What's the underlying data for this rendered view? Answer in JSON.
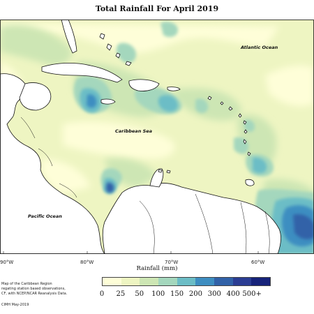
{
  "title": "Total Rainfall For April 2019",
  "labels": {
    "atlantic": "Atlantic Ocean",
    "caribbean": "Caribbean Sea",
    "pacific": "Pacific Ocean"
  },
  "longitudes": [
    "90°W",
    "80°W",
    "70°W",
    "60°W"
  ],
  "axis_title": "Rainfall (mm)",
  "legend": {
    "colors": [
      "#fefed8",
      "#eef5c2",
      "#cde6b4",
      "#a4d7bd",
      "#6cbdc6",
      "#3e8ec1",
      "#3262a8",
      "#2b3d93",
      "#17237a"
    ],
    "ticks": [
      "0",
      "25",
      "50",
      "100",
      "150",
      "200",
      "300",
      "400",
      "500+"
    ]
  },
  "notes": [
    "Map of the Caribbean Region",
    "regating station based observations,",
    "CF, with NCEP/NCAR Reanalysis Data.",
    "CIMH May-2019"
  ]
}
